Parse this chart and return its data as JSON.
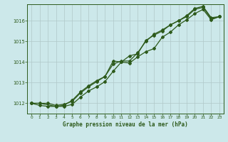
{
  "title": "Graphe pression niveau de la mer (hPa)",
  "background_color": "#cce8ea",
  "line_color": "#2d5a1b",
  "grid_color": "#b0c8c8",
  "xlim": [
    -0.5,
    23.5
  ],
  "ylim": [
    1011.5,
    1016.8
  ],
  "yticks": [
    1012,
    1013,
    1014,
    1015,
    1016
  ],
  "xticks": [
    0,
    1,
    2,
    3,
    4,
    5,
    6,
    7,
    8,
    9,
    10,
    11,
    12,
    13,
    14,
    15,
    16,
    17,
    18,
    19,
    20,
    21,
    22,
    23
  ],
  "series1_x": [
    0,
    1,
    3,
    4,
    5,
    6,
    7,
    8,
    9,
    10,
    11,
    12,
    13,
    14,
    15,
    16,
    17,
    18,
    19,
    20,
    21,
    22,
    23
  ],
  "series1_y": [
    1012.0,
    1012.0,
    1011.85,
    1011.9,
    1012.15,
    1012.55,
    1012.85,
    1013.1,
    1013.3,
    1014.05,
    1014.0,
    1014.3,
    1014.4,
    1015.05,
    1015.3,
    1015.5,
    1015.8,
    1016.0,
    1016.2,
    1016.55,
    1016.65,
    1016.1,
    1016.2
  ],
  "series2_x": [
    0,
    1,
    2,
    3,
    4,
    5,
    6,
    7,
    8,
    9,
    10,
    11,
    12,
    13,
    14,
    15,
    16,
    17,
    18,
    19,
    20,
    21,
    22,
    23
  ],
  "series2_y": [
    1012.0,
    1011.9,
    1011.85,
    1011.85,
    1011.85,
    1011.95,
    1012.3,
    1012.6,
    1012.8,
    1013.05,
    1013.55,
    1014.0,
    1013.95,
    1014.25,
    1014.5,
    1014.65,
    1015.2,
    1015.45,
    1015.8,
    1016.05,
    1016.35,
    1016.55,
    1016.05,
    1016.2
  ],
  "series3_x": [
    0,
    2,
    3,
    4,
    5,
    6,
    7,
    8,
    9,
    10,
    11,
    12,
    13,
    14,
    15,
    16,
    17,
    18,
    19,
    20,
    21,
    22,
    23
  ],
  "series3_y": [
    1012.0,
    1012.0,
    1011.9,
    1011.95,
    1012.1,
    1012.5,
    1012.8,
    1013.05,
    1013.3,
    1013.9,
    1014.05,
    1014.05,
    1014.45,
    1015.0,
    1015.35,
    1015.55,
    1015.8,
    1016.0,
    1016.25,
    1016.6,
    1016.7,
    1016.15,
    1016.2
  ]
}
